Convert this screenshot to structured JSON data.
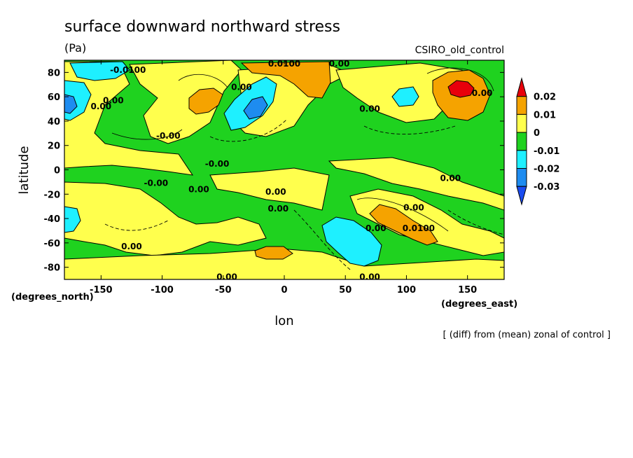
{
  "chart_data": {
    "type": "heatmap",
    "title": "surface downward northward stress",
    "units": "(Pa)",
    "dataset": "CSIRO_old_control",
    "xlabel": "lon",
    "ylabel": "latitude",
    "x_units": "(degrees_east)",
    "y_units": "(degrees_north)",
    "note": "[ (diff) from (mean) zonal of control ]",
    "xlim": [
      -180,
      180
    ],
    "ylim": [
      -90,
      90
    ],
    "x_ticks": [
      -150,
      -100,
      -50,
      0,
      50,
      100,
      150
    ],
    "y_ticks": [
      80,
      60,
      40,
      20,
      0,
      -20,
      -40,
      -60,
      -80
    ],
    "colorbar": {
      "levels": [
        0.02,
        0.01,
        0,
        -0.01,
        -0.02,
        -0.03
      ],
      "bands": [
        {
          "color": "#e8000b"
        },
        {
          "color": "#f5a300"
        },
        {
          "color": "#ffff4d"
        },
        {
          "color": "#1fd21f"
        },
        {
          "color": "#1ef0ff"
        },
        {
          "color": "#1e8cf0"
        },
        {
          "color": "#1a4cf0"
        }
      ]
    },
    "contour_labels": [
      {
        "text": "0.0100",
        "lon": 0,
        "lat": 87
      },
      {
        "text": "0.00",
        "lon": 45,
        "lat": 87
      },
      {
        "text": "-0.0100",
        "lon": -128,
        "lat": 82
      },
      {
        "text": "0.00",
        "lon": -140,
        "lat": 57
      },
      {
        "text": "0.00",
        "lon": -150,
        "lat": 52
      },
      {
        "text": "-0.00",
        "lon": -95,
        "lat": 28
      },
      {
        "text": "0.00",
        "lon": -35,
        "lat": 68
      },
      {
        "text": "-0.00",
        "lon": -55,
        "lat": 5
      },
      {
        "text": "-0.00",
        "lon": -105,
        "lat": -11
      },
      {
        "text": "0.00",
        "lon": -70,
        "lat": -16
      },
      {
        "text": "0.00",
        "lon": -7,
        "lat": -18
      },
      {
        "text": "0.00",
        "lon": -5,
        "lat": -32
      },
      {
        "text": "0.00",
        "lon": 70,
        "lat": 50
      },
      {
        "text": "0.00",
        "lon": 136,
        "lat": -7
      },
      {
        "text": "0.00",
        "lon": 106,
        "lat": -31
      },
      {
        "text": "0.0100",
        "lon": 110,
        "lat": -48
      },
      {
        "text": "0.00",
        "lon": 75,
        "lat": -48
      },
      {
        "text": "0.00",
        "lon": -125,
        "lat": -63
      },
      {
        "text": "0.00",
        "lon": 162,
        "lat": 63
      },
      {
        "text": "0.00",
        "lon": -47,
        "lat": -88
      },
      {
        "text": "0.00",
        "lon": 70,
        "lat": -88
      }
    ]
  }
}
